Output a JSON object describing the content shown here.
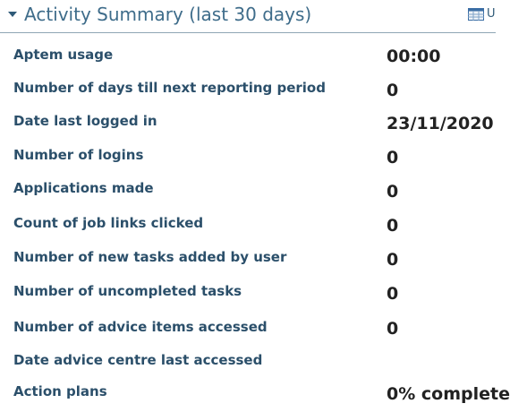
{
  "header": {
    "title": "Activity Summary (last 30 days)",
    "corner_label": "U",
    "icons": {
      "collapse": "caret-down-icon",
      "corner": "calendar-icon"
    }
  },
  "rows": [
    {
      "label": "Aptem usage",
      "value": "00:00"
    },
    {
      "label": "Number of days till next reporting period",
      "value": "0"
    },
    {
      "label": "Date last logged in",
      "value": "23/11/2020"
    },
    {
      "label": "Number of logins",
      "value": "0"
    },
    {
      "label": "Applications made",
      "value": "0"
    },
    {
      "label": "Count of job links clicked",
      "value": "0"
    },
    {
      "label": "Number of new tasks added by user",
      "value": "0"
    },
    {
      "label": "Number of uncompleted tasks",
      "value": "0"
    },
    {
      "label": "Number of advice items accessed",
      "value": "0"
    },
    {
      "label": "Date advice centre last accessed",
      "value": ""
    },
    {
      "label": "Action plans",
      "value": "0% complete"
    }
  ]
}
